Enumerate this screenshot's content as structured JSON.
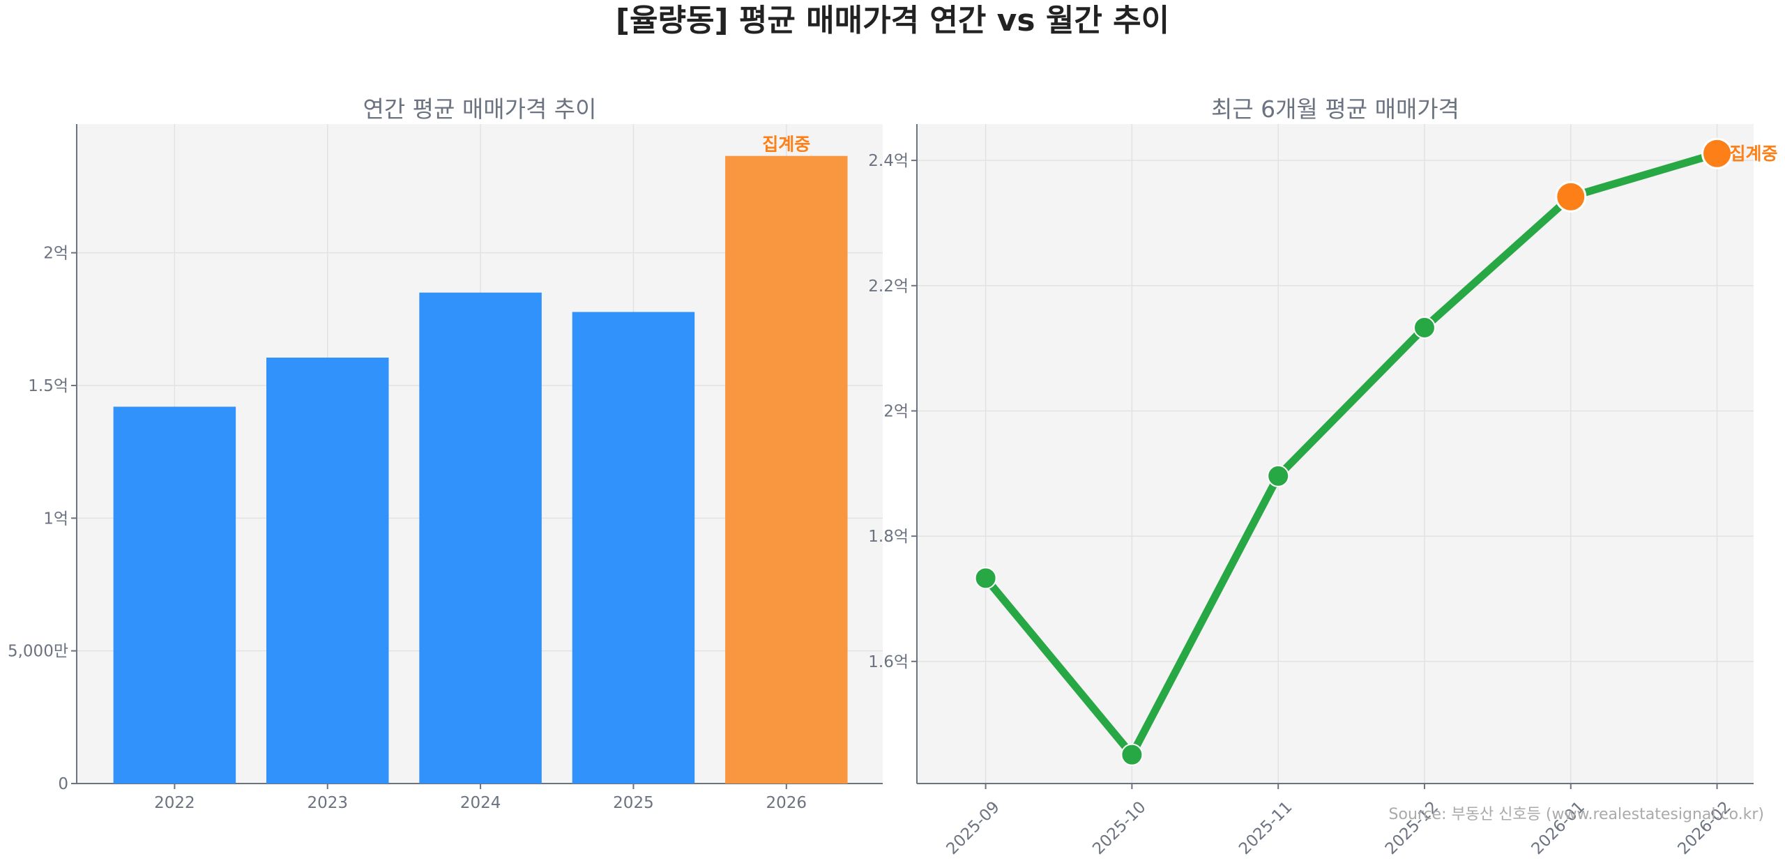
{
  "title": "[율량동] 평균 매매가격 연간 vs 월간 추이",
  "source": "Source: 부동산 신호등 (www.realestatesignal.co.kr)",
  "colors": {
    "bar": "#3192fb",
    "bar_current": "#f99740",
    "line": "#28a745",
    "marker_current": "#fd7f17",
    "annotation": "#fd7f17",
    "panel_bg": "#f4f4f4"
  },
  "chart_data": [
    {
      "type": "bar",
      "title": "연간 평균 매매가격 추이",
      "categories": [
        "2022",
        "2023",
        "2024",
        "2025",
        "2026"
      ],
      "values": [
        1.42,
        1.605,
        1.85,
        1.777,
        2.365
      ],
      "unit": "억",
      "highlight_index": 4,
      "annotation": "집계중",
      "ylim": [
        0,
        2.485
      ],
      "yticks": [
        0,
        0.5,
        1,
        1.5,
        2
      ],
      "ytick_labels": [
        "0",
        "5,000만",
        "1억",
        "1.5억",
        "2억"
      ],
      "xlabel": "",
      "ylabel": "",
      "grid": true
    },
    {
      "type": "line",
      "title": "최근 6개월 평균 매매가격",
      "categories": [
        "2025-09",
        "2025-10",
        "2025-11",
        "2025-12",
        "2026-01",
        "2026-02"
      ],
      "values": [
        1.733,
        1.451,
        1.896,
        2.133,
        2.342,
        2.411
      ],
      "unit": "억",
      "highlight_indices": [
        4,
        5
      ],
      "annotation": "집계중",
      "ylim": [
        1.405,
        2.458
      ],
      "yticks": [
        1.6,
        1.8,
        2.0,
        2.2,
        2.4
      ],
      "ytick_labels": [
        "1.6억",
        "1.8억",
        "2억",
        "2.2억",
        "2.4억"
      ],
      "xlabel": "",
      "ylabel": "",
      "grid": true
    }
  ]
}
